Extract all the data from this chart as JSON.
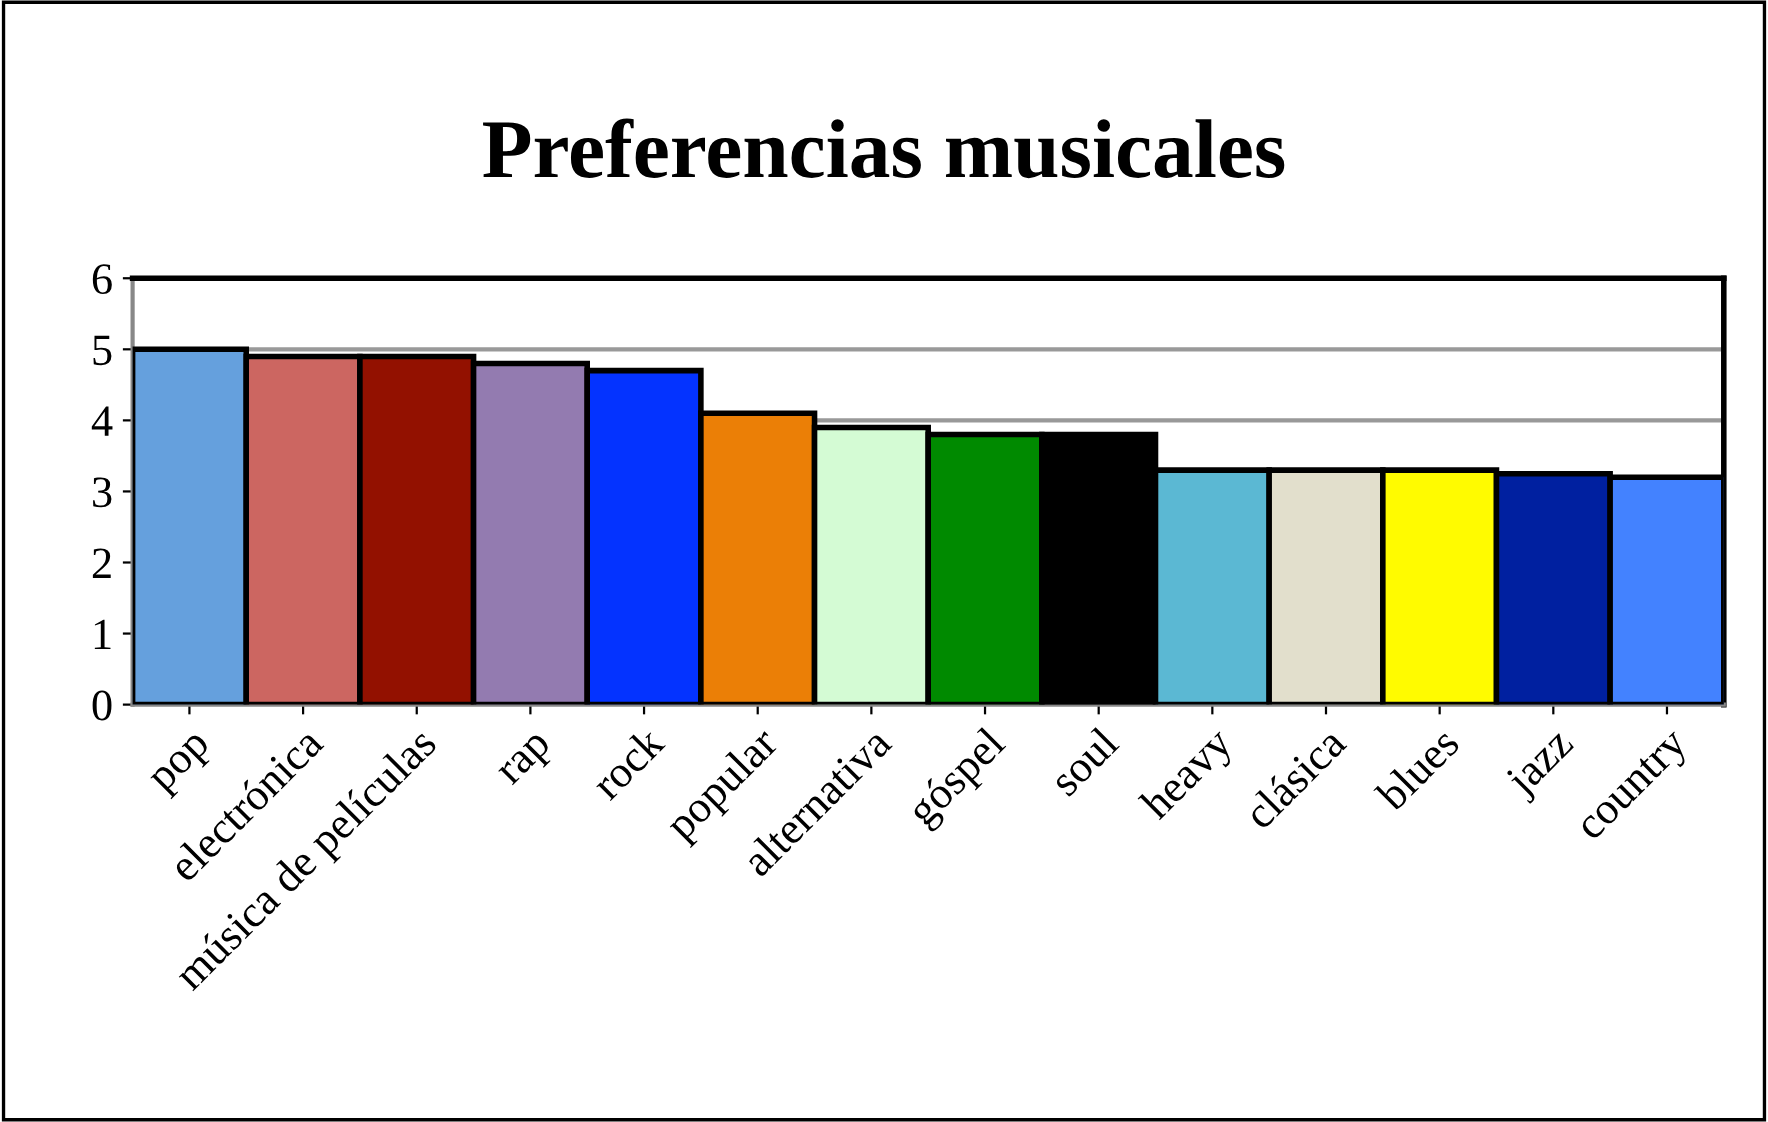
{
  "chart_data": {
    "type": "bar",
    "title": "Preferencias musicales",
    "categories": [
      "pop",
      "electrónica",
      "música de películas",
      "rap",
      "rock",
      "popular",
      "alternativa",
      "góspel",
      "soul",
      "heavy",
      "clásica",
      "blues",
      "jazz",
      "country"
    ],
    "values": [
      5.0,
      4.9,
      4.9,
      4.8,
      4.7,
      4.1,
      3.9,
      3.8,
      3.8,
      3.3,
      3.3,
      3.3,
      3.25,
      3.2
    ],
    "colors": [
      "#65a0dd",
      "#cc6661",
      "#931100",
      "#937bb0",
      "#0433ff",
      "#eb7f06",
      "#d4fbd4",
      "#008a00",
      "#000000",
      "#5bb8d3",
      "#e2dfcc",
      "#fffb00",
      "#0020a0",
      "#4382ff"
    ],
    "ylim": [
      0,
      6
    ],
    "yticks": [
      0,
      1,
      2,
      3,
      4,
      5,
      6
    ],
    "grid": "y"
  }
}
